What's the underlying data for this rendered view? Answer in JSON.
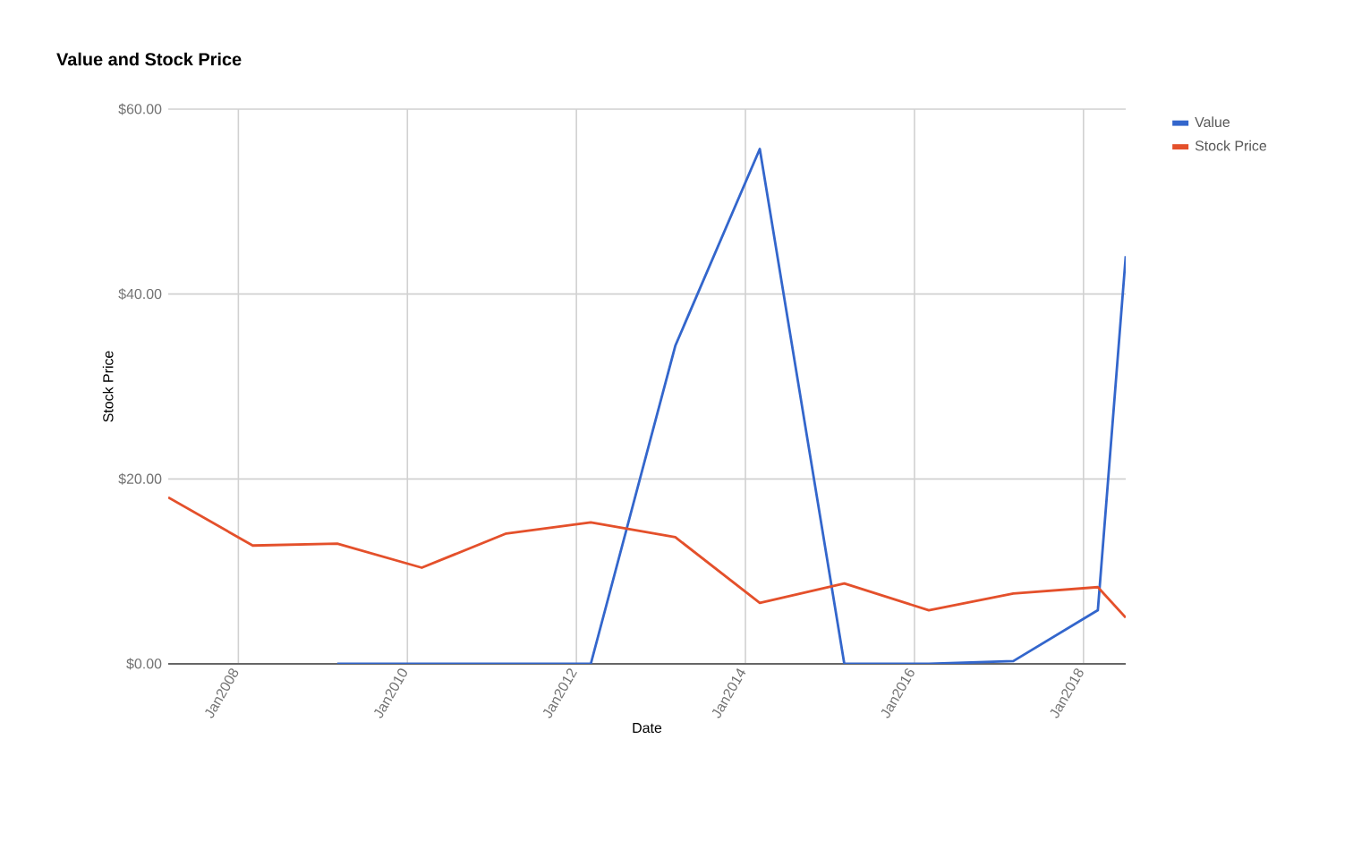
{
  "chart_data": {
    "type": "line",
    "title": "Value and Stock Price",
    "xlabel": "Date",
    "ylabel": "Stock Price",
    "x": [
      "2007-03",
      "2008-03",
      "2009-03",
      "2010-03",
      "2011-03",
      "2012-03",
      "2013-03",
      "2014-03",
      "2015-03",
      "2016-03",
      "2017-03",
      "2018-03",
      "2018-07"
    ],
    "series": [
      {
        "name": "Value",
        "color": "#3366cc",
        "values": [
          null,
          null,
          0,
          0,
          0,
          0,
          34.4,
          55.7,
          0,
          0,
          0.3,
          5.8,
          44.1
        ]
      },
      {
        "name": "Stock Price",
        "color": "#e4502b",
        "values": [
          18.0,
          12.8,
          13.0,
          10.4,
          14.1,
          15.3,
          13.7,
          6.6,
          8.7,
          5.8,
          7.6,
          8.3,
          5.0
        ]
      }
    ],
    "xlim": [
      "2007-03",
      "2018-07"
    ],
    "xticks": [
      {
        "value": "2008-01",
        "label": "Jan2008"
      },
      {
        "value": "2010-01",
        "label": "Jan2010"
      },
      {
        "value": "2012-01",
        "label": "Jan2012"
      },
      {
        "value": "2014-01",
        "label": "Jan2014"
      },
      {
        "value": "2016-01",
        "label": "Jan2016"
      },
      {
        "value": "2018-01",
        "label": "Jan2018"
      }
    ],
    "ylim": [
      0,
      60
    ],
    "yticks": [
      {
        "value": 0,
        "label": "$0.00"
      },
      {
        "value": 20,
        "label": "$20.00"
      },
      {
        "value": 40,
        "label": "$40.00"
      },
      {
        "value": 60,
        "label": "$60.00"
      }
    ],
    "grid": true,
    "legend": "top right",
    "marker": "none",
    "line_style": "solid"
  }
}
